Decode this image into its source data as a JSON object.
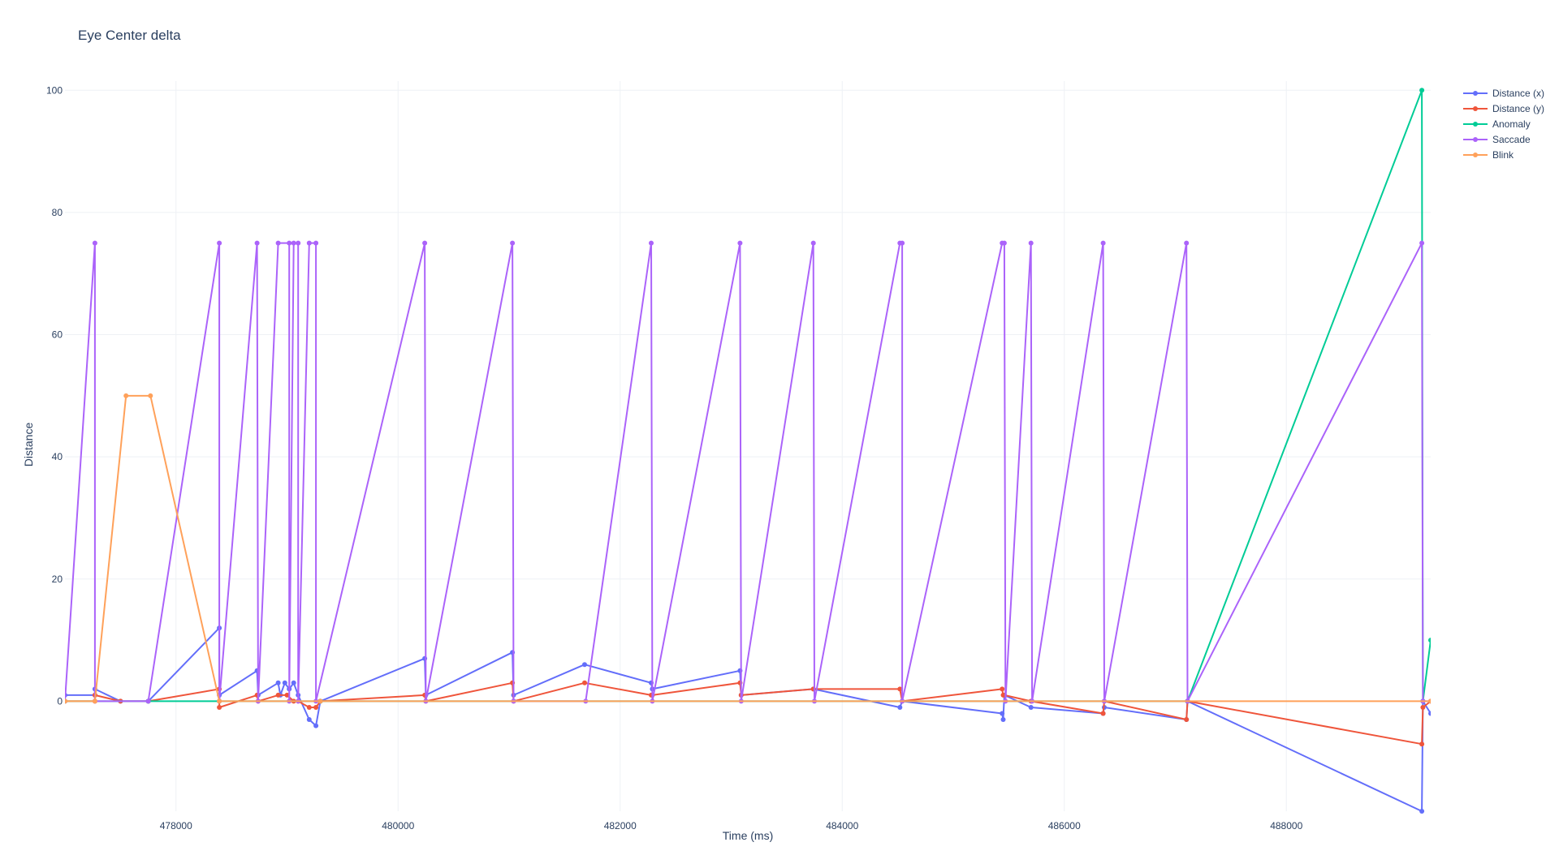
{
  "chart_data": {
    "type": "line",
    "title": "Eye Center delta",
    "xlabel": "Time (ms)",
    "ylabel": "Distance",
    "xlim": [
      477000,
      489300
    ],
    "ylim": [
      -18,
      101.5
    ],
    "x_ticks": [
      478000,
      480000,
      482000,
      484000,
      486000,
      488000
    ],
    "x_tick_labels": [
      "478000",
      "480000",
      "482000",
      "484000",
      "486000",
      "488000"
    ],
    "y_ticks": [
      0,
      20,
      40,
      60,
      80,
      100
    ],
    "y_tick_labels": [
      "0",
      "20",
      "40",
      "60",
      "80",
      "100"
    ],
    "grid": true,
    "legend_position": "top-right",
    "series": [
      {
        "name": "Distance (x)",
        "color": "#636efa",
        "points": [
          [
            477000,
            1
          ],
          [
            477270,
            1
          ],
          [
            477270,
            2
          ],
          [
            477500,
            0
          ],
          [
            477750,
            0
          ],
          [
            478390,
            12
          ],
          [
            478390,
            1
          ],
          [
            478730,
            5
          ],
          [
            478740,
            1
          ],
          [
            478920,
            3
          ],
          [
            478940,
            1
          ],
          [
            478980,
            3
          ],
          [
            479020,
            2
          ],
          [
            479060,
            3
          ],
          [
            479100,
            1
          ],
          [
            479200,
            -3
          ],
          [
            479260,
            -4
          ],
          [
            479300,
            0
          ],
          [
            480240,
            7
          ],
          [
            480250,
            1
          ],
          [
            481030,
            8
          ],
          [
            481040,
            1
          ],
          [
            481680,
            6
          ],
          [
            482280,
            3
          ],
          [
            482290,
            2
          ],
          [
            483080,
            5
          ],
          [
            483090,
            1
          ],
          [
            483740,
            2
          ],
          [
            484520,
            -1
          ],
          [
            484540,
            0
          ],
          [
            485440,
            -2
          ],
          [
            485450,
            -3
          ],
          [
            485460,
            1
          ],
          [
            485700,
            -1
          ],
          [
            486350,
            -2
          ],
          [
            486360,
            -1
          ],
          [
            487100,
            -3
          ],
          [
            487110,
            0
          ],
          [
            489220,
            -18
          ],
          [
            489230,
            0
          ],
          [
            489300,
            -2
          ]
        ]
      },
      {
        "name": "Distance (y)",
        "color": "#ef553b",
        "points": [
          [
            477000,
            0
          ],
          [
            477270,
            0
          ],
          [
            477270,
            1
          ],
          [
            477500,
            0
          ],
          [
            477750,
            0
          ],
          [
            478390,
            2
          ],
          [
            478390,
            -1
          ],
          [
            478730,
            1
          ],
          [
            478740,
            0
          ],
          [
            478920,
            1
          ],
          [
            479000,
            1
          ],
          [
            479060,
            0
          ],
          [
            479100,
            0
          ],
          [
            479200,
            -1
          ],
          [
            479260,
            -1
          ],
          [
            479300,
            0
          ],
          [
            480240,
            1
          ],
          [
            480250,
            0
          ],
          [
            481030,
            3
          ],
          [
            481040,
            0
          ],
          [
            481680,
            3
          ],
          [
            482280,
            1
          ],
          [
            482290,
            1
          ],
          [
            483080,
            3
          ],
          [
            483090,
            1
          ],
          [
            483740,
            2
          ],
          [
            484520,
            2
          ],
          [
            484540,
            0
          ],
          [
            485440,
            2
          ],
          [
            485450,
            1
          ],
          [
            485460,
            1
          ],
          [
            485700,
            0
          ],
          [
            486350,
            -2
          ],
          [
            486360,
            0
          ],
          [
            487100,
            -3
          ],
          [
            487110,
            0
          ],
          [
            489220,
            -7
          ],
          [
            489230,
            -1
          ],
          [
            489300,
            0
          ]
        ]
      },
      {
        "name": "Anomaly",
        "color": "#00cc96",
        "points": [
          [
            477000,
            0
          ],
          [
            477750,
            0
          ],
          [
            478390,
            0
          ],
          [
            479300,
            0
          ],
          [
            487110,
            0
          ],
          [
            489220,
            100
          ],
          [
            489230,
            0
          ],
          [
            489300,
            10
          ]
        ]
      },
      {
        "name": "Saccade",
        "color": "#ab63fa",
        "points": [
          [
            477000,
            0
          ],
          [
            477270,
            75
          ],
          [
            477270,
            0
          ],
          [
            477750,
            0
          ],
          [
            478390,
            75
          ],
          [
            478390,
            0
          ],
          [
            478730,
            75
          ],
          [
            478740,
            0
          ],
          [
            478920,
            75
          ],
          [
            479020,
            75
          ],
          [
            479020,
            0
          ],
          [
            479060,
            75
          ],
          [
            479100,
            75
          ],
          [
            479100,
            0
          ],
          [
            479200,
            75
          ],
          [
            479260,
            75
          ],
          [
            479260,
            0
          ],
          [
            480240,
            75
          ],
          [
            480250,
            0
          ],
          [
            481030,
            75
          ],
          [
            481040,
            0
          ],
          [
            481690,
            0
          ],
          [
            482280,
            75
          ],
          [
            482290,
            0
          ],
          [
            483080,
            75
          ],
          [
            483090,
            0
          ],
          [
            483740,
            75
          ],
          [
            483750,
            0
          ],
          [
            484520,
            75
          ],
          [
            484540,
            75
          ],
          [
            484540,
            0
          ],
          [
            485440,
            75
          ],
          [
            485460,
            75
          ],
          [
            485470,
            0
          ],
          [
            485700,
            75
          ],
          [
            485710,
            0
          ],
          [
            486350,
            75
          ],
          [
            486360,
            0
          ],
          [
            487100,
            75
          ],
          [
            487110,
            0
          ],
          [
            489220,
            75
          ],
          [
            489230,
            0
          ],
          [
            489300,
            0
          ]
        ]
      },
      {
        "name": "Blink",
        "color": "#ffa15a",
        "points": [
          [
            477000,
            0
          ],
          [
            477270,
            0
          ],
          [
            477550,
            50
          ],
          [
            477770,
            50
          ],
          [
            478390,
            0
          ],
          [
            479300,
            0
          ],
          [
            489300,
            0
          ]
        ]
      }
    ]
  }
}
